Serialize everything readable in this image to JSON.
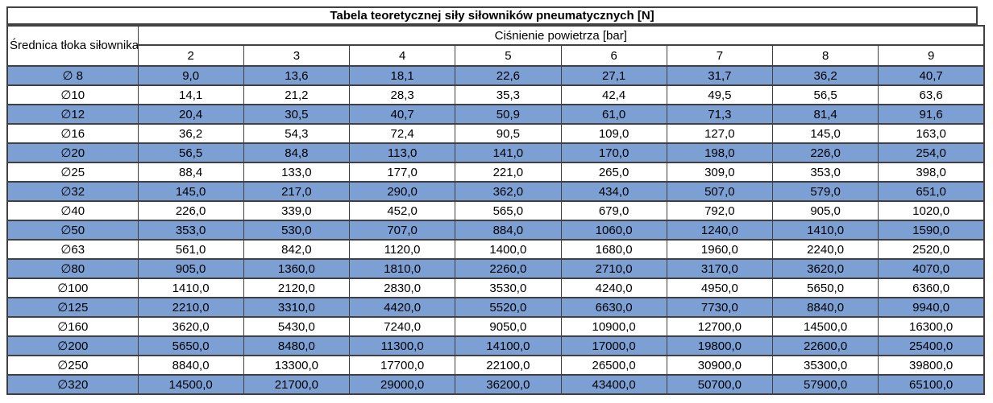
{
  "colors": {
    "highlight_row": "#7CA0D4",
    "border": "#404040"
  },
  "table": {
    "title": "Tabela teoretycznej siły siłowników pneumatycznych [N]",
    "row_header": "Średnica tłoka siłownika",
    "col_header_group": "Ciśnienie powietrza [bar]",
    "pressures": [
      "2",
      "3",
      "4",
      "5",
      "6",
      "7",
      "8",
      "9"
    ],
    "rows": [
      {
        "diameter": "∅ 8",
        "highlight": true,
        "values": [
          "9,0",
          "13,6",
          "18,1",
          "22,6",
          "27,1",
          "31,7",
          "36,2",
          "40,7"
        ]
      },
      {
        "diameter": "∅10",
        "highlight": false,
        "values": [
          "14,1",
          "21,2",
          "28,3",
          "35,3",
          "42,4",
          "49,5",
          "56,5",
          "63,6"
        ]
      },
      {
        "diameter": "∅12",
        "highlight": true,
        "values": [
          "20,4",
          "30,5",
          "40,7",
          "50,9",
          "61,0",
          "71,3",
          "81,4",
          "91,6"
        ]
      },
      {
        "diameter": "∅16",
        "highlight": false,
        "values": [
          "36,2",
          "54,3",
          "72,4",
          "90,5",
          "109,0",
          "127,0",
          "145,0",
          "163,0"
        ]
      },
      {
        "diameter": "∅20",
        "highlight": true,
        "values": [
          "56,5",
          "84,8",
          "113,0",
          "141,0",
          "170,0",
          "198,0",
          "226,0",
          "254,0"
        ]
      },
      {
        "diameter": "∅25",
        "highlight": false,
        "values": [
          "88,4",
          "133,0",
          "177,0",
          "221,0",
          "265,0",
          "309,0",
          "353,0",
          "398,0"
        ]
      },
      {
        "diameter": "∅32",
        "highlight": true,
        "values": [
          "145,0",
          "217,0",
          "290,0",
          "362,0",
          "434,0",
          "507,0",
          "579,0",
          "651,0"
        ]
      },
      {
        "diameter": "∅40",
        "highlight": false,
        "values": [
          "226,0",
          "339,0",
          "452,0",
          "565,0",
          "679,0",
          "792,0",
          "905,0",
          "1020,0"
        ]
      },
      {
        "diameter": "∅50",
        "highlight": true,
        "values": [
          "353,0",
          "530,0",
          "707,0",
          "884,0",
          "1060,0",
          "1240,0",
          "1410,0",
          "1590,0"
        ]
      },
      {
        "diameter": "∅63",
        "highlight": false,
        "values": [
          "561,0",
          "842,0",
          "1120,0",
          "1400,0",
          "1680,0",
          "1960,0",
          "2240,0",
          "2520,0"
        ]
      },
      {
        "diameter": "∅80",
        "highlight": true,
        "values": [
          "905,0",
          "1360,0",
          "1810,0",
          "2260,0",
          "2710,0",
          "3170,0",
          "3620,0",
          "4070,0"
        ]
      },
      {
        "diameter": "∅100",
        "highlight": false,
        "values": [
          "1410,0",
          "2120,0",
          "2830,0",
          "3530,0",
          "4240,0",
          "4950,0",
          "5650,0",
          "6360,0"
        ]
      },
      {
        "diameter": "∅125",
        "highlight": true,
        "values": [
          "2210,0",
          "3310,0",
          "4420,0",
          "5520,0",
          "6630,0",
          "7730,0",
          "8840,0",
          "9940,0"
        ]
      },
      {
        "diameter": "∅160",
        "highlight": false,
        "values": [
          "3620,0",
          "5430,0",
          "7240,0",
          "9050,0",
          "10900,0",
          "12700,0",
          "14500,0",
          "16300,0"
        ]
      },
      {
        "diameter": "∅200",
        "highlight": true,
        "values": [
          "5650,0",
          "8480,0",
          "11300,0",
          "14100,0",
          "17000,0",
          "19800,0",
          "22600,0",
          "25400,0"
        ]
      },
      {
        "diameter": "∅250",
        "highlight": false,
        "values": [
          "8840,0",
          "13300,0",
          "17700,0",
          "22100,0",
          "26500,0",
          "30900,0",
          "35300,0",
          "39800,0"
        ]
      },
      {
        "diameter": "∅320",
        "highlight": true,
        "values": [
          "14500,0",
          "21700,0",
          "29000,0",
          "36200,0",
          "43400,0",
          "50700,0",
          "57900,0",
          "65100,0"
        ]
      }
    ]
  }
}
